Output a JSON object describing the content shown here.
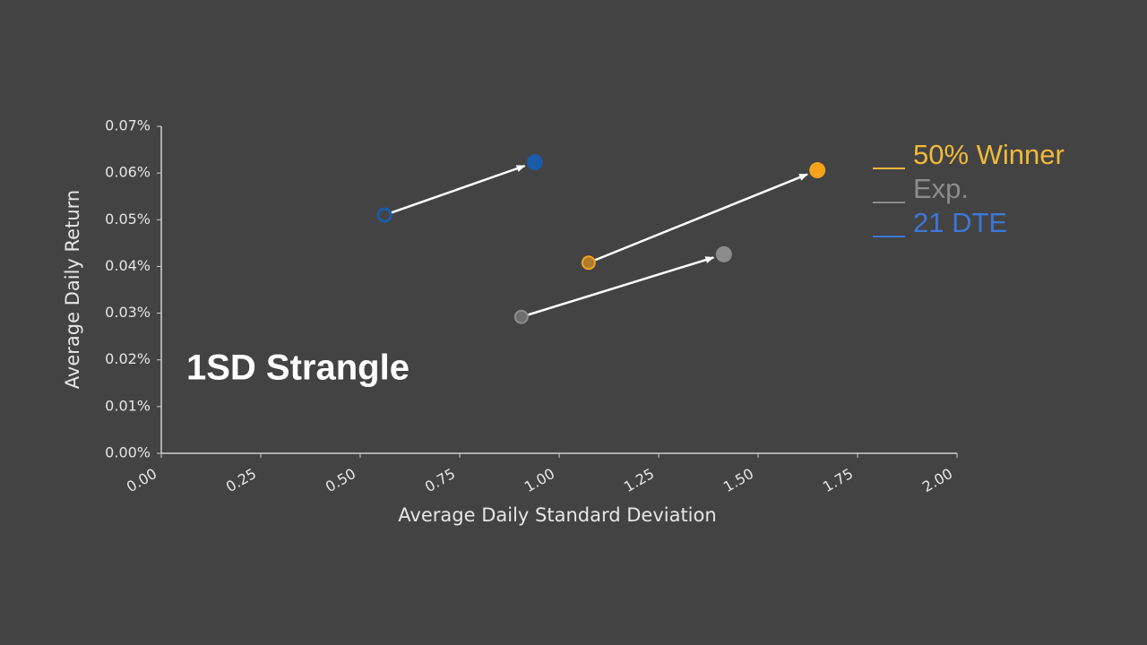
{
  "chart_data": {
    "type": "scatter",
    "annotation": "1SD Strangle",
    "x_label": "Average Daily Standard Deviation",
    "y_label": "Average Daily Return",
    "xlim": [
      0,
      2
    ],
    "ylim": [
      0,
      0.07
    ],
    "xticks": [
      {
        "value": 0,
        "label": "0.00"
      },
      {
        "value": 0.25,
        "label": "0.25"
      },
      {
        "value": 0.5,
        "label": "0.50"
      },
      {
        "value": 0.75,
        "label": "0.75"
      },
      {
        "value": 1,
        "label": "1.00"
      },
      {
        "value": 1.25,
        "label": "1.25"
      },
      {
        "value": 1.5,
        "label": "1.50"
      },
      {
        "value": 1.75,
        "label": "1.75"
      },
      {
        "value": 2,
        "label": "2.00"
      }
    ],
    "yticks": [
      {
        "value": 0,
        "label": "0.00%"
      },
      {
        "value": 0.01,
        "label": "0.01%"
      },
      {
        "value": 0.02,
        "label": "0.02%"
      },
      {
        "value": 0.03,
        "label": "0.03%"
      },
      {
        "value": 0.04,
        "label": "0.04%"
      },
      {
        "value": 0.05,
        "label": "0.05%"
      },
      {
        "value": 0.06,
        "label": "0.06%"
      },
      {
        "value": 0.07,
        "label": "0.07%"
      }
    ],
    "grid": false,
    "legend_position": "right",
    "series": [
      {
        "name": "50% Winner",
        "color": "#f5a21c",
        "x": [
          1.074,
          1.649
        ],
        "y": [
          0.0408,
          0.0606
        ]
      },
      {
        "name": "Exp.",
        "color": "#8c8c8c",
        "x": [
          0.905,
          1.414
        ],
        "y": [
          0.0292,
          0.0426
        ]
      },
      {
        "name": "21 DTE",
        "color": "#1a5ca8",
        "x": [
          0.561,
          0.939
        ],
        "y": [
          0.051,
          0.0623
        ]
      }
    ]
  }
}
